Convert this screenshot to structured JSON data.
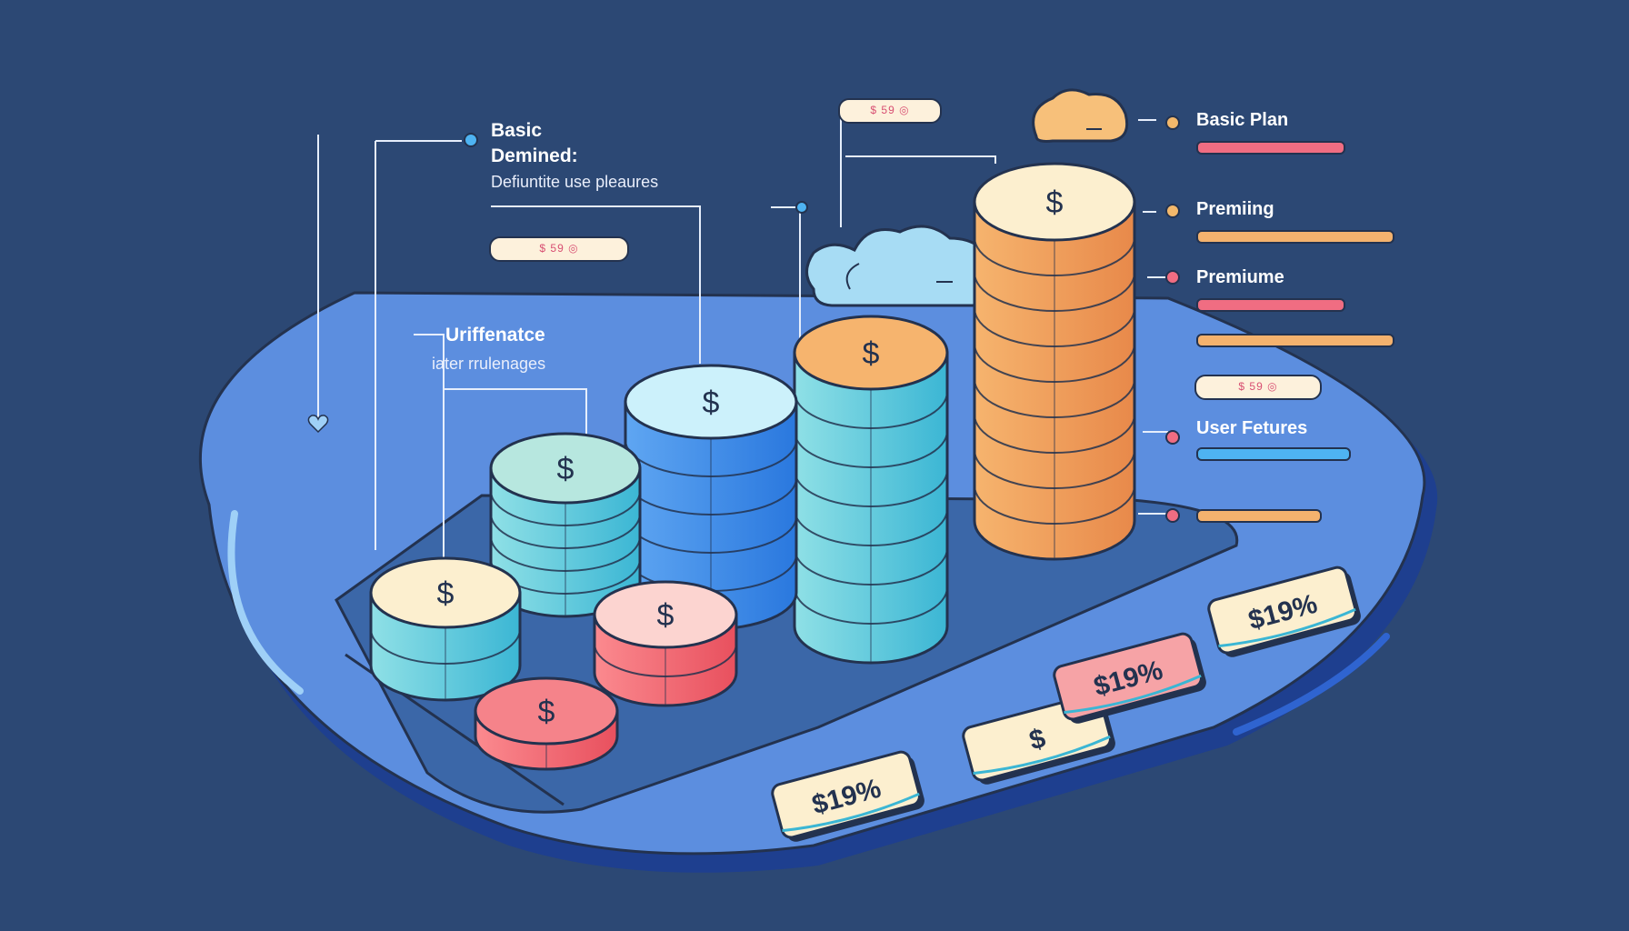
{
  "annotations": {
    "basic_title": "Basic",
    "basic_subtitle": "Demined:",
    "basic_desc": "Defiuntite use pleaures",
    "diff_title": "Uriffenatce",
    "diff_desc": "iater rrulenages"
  },
  "price_pills": [
    "$ 59 ◎",
    "$ 59 ◎",
    "$ 59 ◎"
  ],
  "plans": [
    {
      "label": "Basic Plan",
      "bar_color": "#f06d82",
      "dot_color": "#f3b86b"
    },
    {
      "label": "Premiing",
      "bar_color": "#f4b26e",
      "dot_color": "#f3b86b"
    },
    {
      "label": "Premiume",
      "bar_color": "#f06d82",
      "dot_color": "#f06d82"
    },
    {
      "label": "User Fetures",
      "bar_color": "#4eb3f2",
      "dot_color": "#f06d82"
    }
  ],
  "extra_bars": [
    "#f4b26e",
    "#f4b26e"
  ],
  "coin_symbol": "$",
  "price_tags": [
    "$19%",
    "$",
    "$19%",
    "$19%"
  ],
  "colors": {
    "background": "#2c4874",
    "platform": "#5c8edf",
    "pink": "#f06d82",
    "orange": "#f4a15e",
    "teal": "#5fc9d8",
    "blue": "#3b8de8",
    "cream": "#fcefcf"
  }
}
